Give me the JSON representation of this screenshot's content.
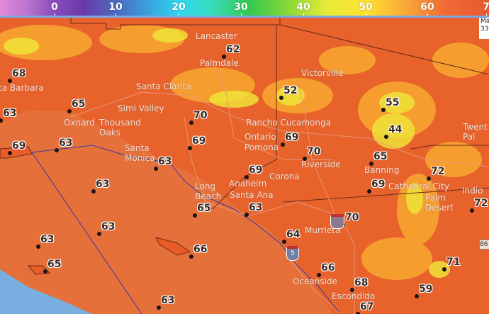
{
  "legend": {
    "ticks": [
      "0",
      "10",
      "20",
      "30",
      "40",
      "50",
      "60",
      "7"
    ],
    "colors": {
      "low": "#e48ad8",
      "purple": "#6a3aa8",
      "cyan": "#30d8ee",
      "green": "#34c850",
      "yellow": "#ffe030",
      "orange": "#f06a34"
    }
  },
  "corner_label": {
    "line1": "Ma",
    "line2": "33."
  },
  "stations": [
    "62",
    "68",
    "65",
    "63",
    "70",
    "52",
    "55",
    "44",
    "69",
    "63",
    "69",
    "63",
    "69",
    "70",
    "65",
    "69",
    "72",
    "69",
    "63",
    "65",
    "63",
    "72",
    "70",
    "63",
    "64",
    "63",
    "66",
    "65",
    "71",
    "66",
    "68",
    "59",
    "63",
    "67"
  ],
  "cities": [
    "Lancaster",
    "Palmdale",
    "Victorville",
    "Santa Clarita",
    "Simi Valley",
    "Oxnard",
    "Thousand\nOaks",
    "ta Barbara",
    "Santa\nMonica",
    "Rancho Cucamonga",
    "Ontario",
    "Pomona",
    "Riverside",
    "Corona",
    "Banning",
    "Anaheim",
    "Santa Ana",
    "Long\nBeach",
    "Cathedral City",
    "Palm\nDesert",
    "Indio",
    "Murrieta",
    "Oceanside",
    "Escondido",
    "Twent\nPal"
  ],
  "highway_shields": [
    "5",
    "86"
  ],
  "map_colors": {
    "land": "#e8622c",
    "ocean": "#e6703a",
    "sea": "#78aee0",
    "warm": "#f8b030",
    "cool": "#f4e040"
  }
}
